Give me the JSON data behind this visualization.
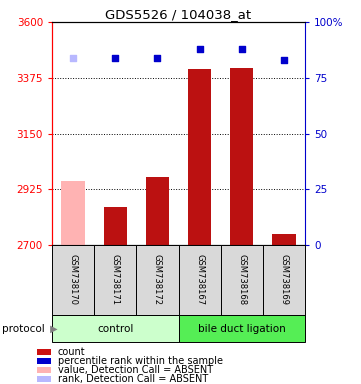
{
  "title": "GDS5526 / 104038_at",
  "samples": [
    "GSM738170",
    "GSM738171",
    "GSM738172",
    "GSM738167",
    "GSM738168",
    "GSM738169"
  ],
  "bar_values": [
    2960,
    2855,
    2975,
    3410,
    3415,
    2745
  ],
  "bar_absent": [
    true,
    false,
    false,
    false,
    false,
    false
  ],
  "dot_values_pct": [
    84,
    84,
    84,
    88,
    88,
    83
  ],
  "dot_absent": [
    true,
    false,
    false,
    false,
    false,
    false
  ],
  "ylim_left": [
    2700,
    3600
  ],
  "ylim_right": [
    0,
    100
  ],
  "yticks_left": [
    2700,
    2925,
    3150,
    3375,
    3600
  ],
  "yticks_right": [
    0,
    25,
    50,
    75,
    100
  ],
  "ytick_labels_right": [
    "0",
    "25",
    "50",
    "75",
    "100%"
  ],
  "group_ranges": [
    [
      0,
      2
    ],
    [
      3,
      5
    ]
  ],
  "group_labels": [
    "control",
    "bile duct ligation"
  ],
  "group_colors_light": [
    "#ccffcc",
    "#55ee55"
  ],
  "legend_colors": [
    "#cc1111",
    "#0000cc",
    "#ffb3b3",
    "#b8b8ff"
  ],
  "legend_labels": [
    "count",
    "percentile rank within the sample",
    "value, Detection Call = ABSENT",
    "rank, Detection Call = ABSENT"
  ],
  "protocol_label": "protocol",
  "bar_color_absent": "#ffb3b3",
  "bar_color_present": "#bb1111",
  "dot_color_absent": "#b8b8ff",
  "dot_color_present": "#0000cc",
  "bar_width": 0.55
}
